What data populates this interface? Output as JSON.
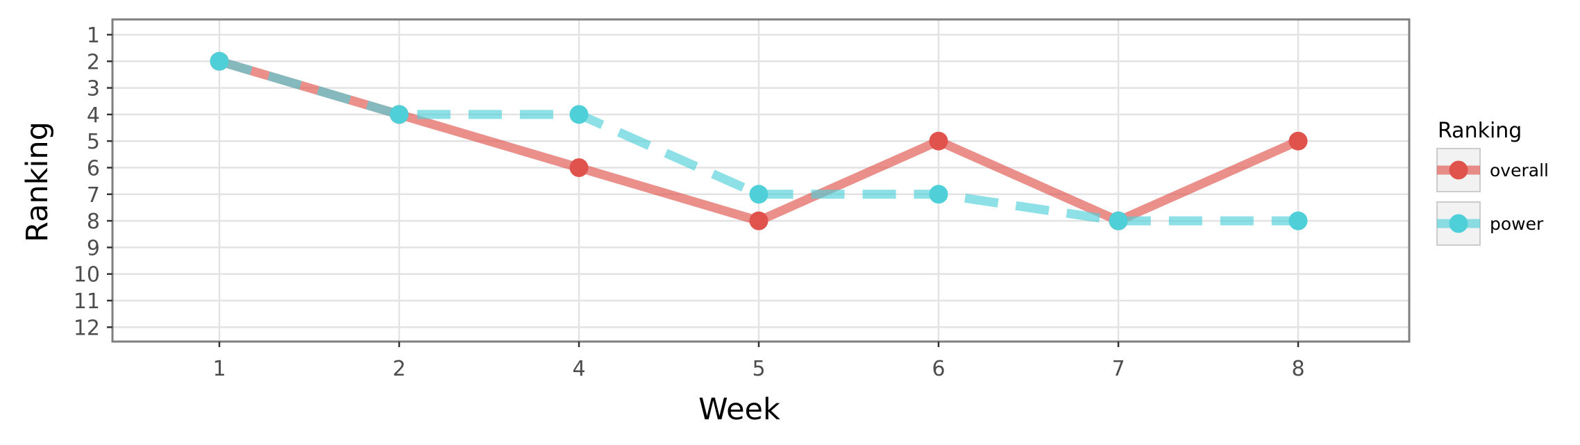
{
  "chart_data": {
    "type": "line",
    "xlabel": "Week",
    "ylabel": "Ranking",
    "categories": [
      "1",
      "2",
      "4",
      "5",
      "6",
      "7",
      "8"
    ],
    "y_ticks": [
      1,
      2,
      3,
      4,
      5,
      6,
      7,
      8,
      9,
      10,
      11,
      12
    ],
    "ylim": [
      1,
      12
    ],
    "y_reversed": true,
    "grid": true,
    "legend": {
      "title": "Ranking",
      "placement": "right"
    },
    "series": [
      {
        "name": "overall",
        "values": [
          2,
          4,
          6,
          8,
          5,
          8,
          5
        ],
        "color": "#e0534d",
        "line_style": "solid"
      },
      {
        "name": "power",
        "values": [
          2,
          4,
          4,
          7,
          7,
          8,
          8
        ],
        "color": "#4fd0d8",
        "line_style": "dashed"
      }
    ]
  }
}
